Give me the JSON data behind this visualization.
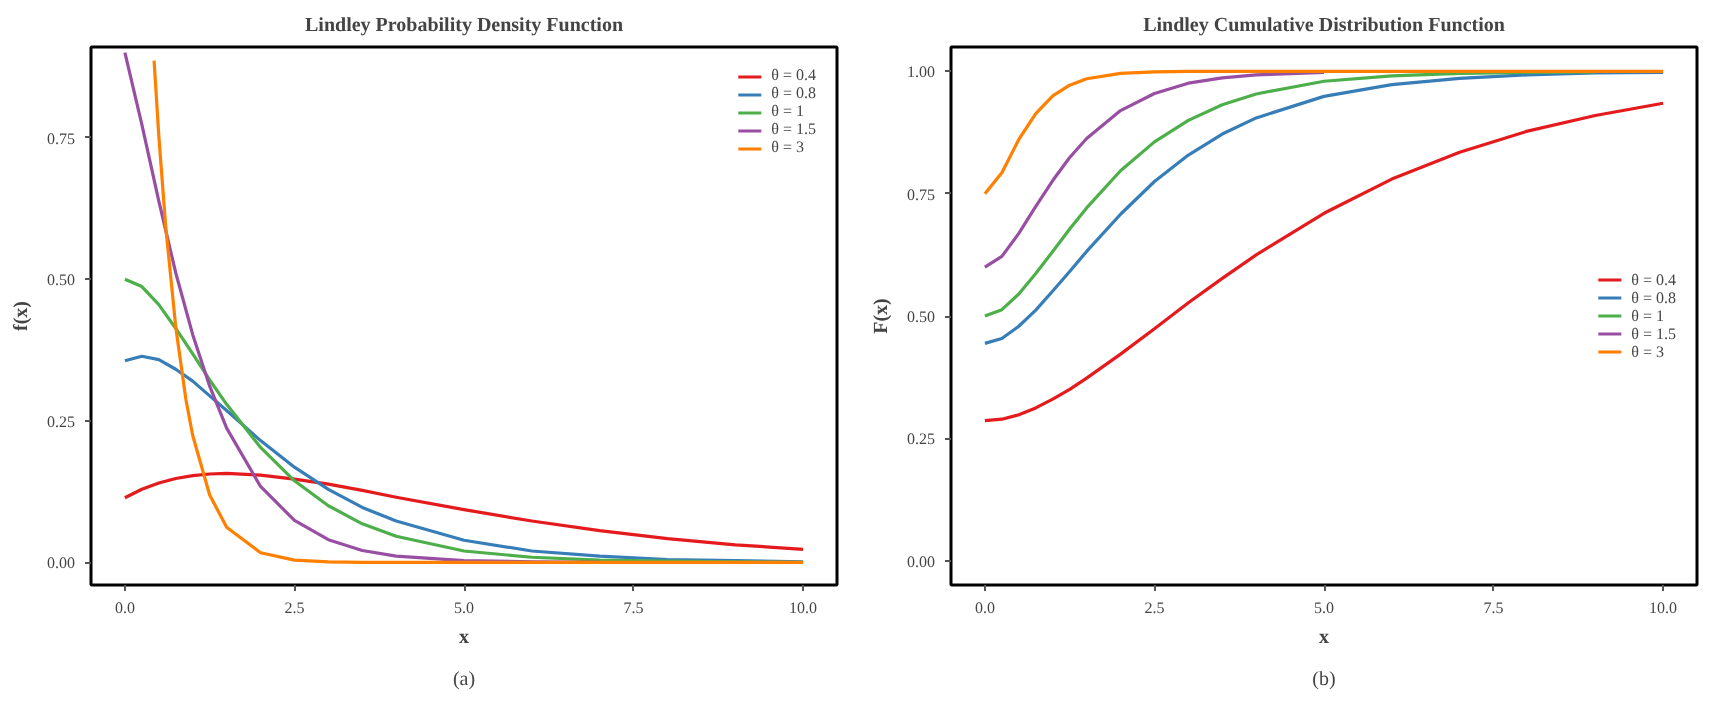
{
  "chart_data": [
    {
      "type": "line",
      "title": "Lindley Probability Density Function",
      "xlabel": "x",
      "ylabel": "f(x)",
      "annotations": [
        "(a)"
      ],
      "legend": "top right",
      "xlim": [
        -0.5,
        10.5
      ],
      "ylim": [
        -0.04,
        0.91
      ],
      "xticks": [
        {
          "value": 0,
          "label": "0.0"
        },
        {
          "value": 2.5,
          "label": "2.5"
        },
        {
          "value": 5,
          "label": "5.0"
        },
        {
          "value": 7.5,
          "label": "7.5"
        },
        {
          "value": 10,
          "label": "10.0"
        }
      ],
      "yticks": [
        {
          "value": 0,
          "label": "0.00"
        },
        {
          "value": 0.25,
          "label": "0.25"
        },
        {
          "value": 0.5,
          "label": "0.50"
        },
        {
          "value": 0.75,
          "label": "0.75"
        }
      ],
      "x": [
        0,
        0.25,
        0.5,
        0.75,
        1,
        1.25,
        1.5,
        2,
        2.5,
        3,
        3.5,
        4,
        5,
        6,
        7,
        8,
        9,
        10
      ],
      "series": [
        {
          "name": "θ = 0.4",
          "color": "#e41a1c",
          "values": [
            0.114,
            0.129,
            0.14,
            0.148,
            0.153,
            0.156,
            0.157,
            0.154,
            0.147,
            0.138,
            0.127,
            0.115,
            0.093,
            0.073,
            0.056,
            0.042,
            0.031,
            0.023
          ]
        },
        {
          "name": "θ = 0.8",
          "color": "#377eb8",
          "values": [
            0.356,
            0.364,
            0.358,
            0.341,
            0.32,
            0.294,
            0.268,
            0.215,
            0.168,
            0.129,
            0.097,
            0.073,
            0.039,
            0.02,
            0.011,
            0.005,
            0.003,
            0.001
          ]
        },
        {
          "name": "θ = 1",
          "color": "#4daf4a",
          "values": [
            0.5,
            0.487,
            0.455,
            0.413,
            0.368,
            0.322,
            0.279,
            0.203,
            0.144,
            0.1,
            0.068,
            0.046,
            0.02,
            0.009,
            0.004,
            0.002,
            0.001,
            0.0
          ]
        },
        {
          "name": "θ = 1.5",
          "color": "#984ea3",
          "values": [
            0.9,
            0.773,
            0.638,
            0.511,
            0.402,
            0.311,
            0.237,
            0.134,
            0.074,
            0.04,
            0.021,
            0.011,
            0.003,
            0.001,
            0.0,
            null,
            null,
            null
          ]
        },
        {
          "name": "θ = 3",
          "color": "#ff7f00",
          "x": [
            0.43,
            0.5,
            0.6,
            0.75,
            0.9,
            1,
            1.25,
            1.5,
            2,
            2.5,
            3,
            3.5,
            4,
            5,
            6,
            7,
            8,
            9,
            10
          ],
          "values": [
            0.886,
            0.753,
            0.595,
            0.415,
            0.287,
            0.224,
            0.119,
            0.062,
            0.017,
            0.004,
            0.001,
            0.0,
            0.0,
            0.0,
            0.0,
            0.0,
            0.0,
            0.0,
            0.0
          ]
        }
      ]
    },
    {
      "type": "line",
      "title": "Lindley Cumulative Distribution Function",
      "xlabel": "x",
      "ylabel": "F(x)",
      "annotations": [
        "(b)"
      ],
      "legend": "right",
      "xlim": [
        -0.5,
        10.5
      ],
      "ylim": [
        -0.05,
        1.05
      ],
      "xticks": [
        {
          "value": 0,
          "label": "0.0"
        },
        {
          "value": 2.5,
          "label": "2.5"
        },
        {
          "value": 5,
          "label": "5.0"
        },
        {
          "value": 7.5,
          "label": "7.5"
        },
        {
          "value": 10,
          "label": "10.0"
        }
      ],
      "yticks": [
        {
          "value": 0,
          "label": "0.00"
        },
        {
          "value": 0.25,
          "label": "0.25"
        },
        {
          "value": 0.5,
          "label": "0.50"
        },
        {
          "value": 0.75,
          "label": "0.75"
        },
        {
          "value": 1,
          "label": "1.00"
        }
      ],
      "x": [
        0,
        0.25,
        0.5,
        0.75,
        1,
        1.25,
        1.5,
        2,
        2.5,
        3,
        3.5,
        4,
        5,
        6,
        7,
        8,
        9,
        10
      ],
      "series": [
        {
          "name": "θ = 0.4",
          "color": "#e41a1c",
          "values": [
            0.286,
            0.289,
            0.298,
            0.312,
            0.33,
            0.35,
            0.373,
            0.422,
            0.474,
            0.527,
            0.577,
            0.625,
            0.71,
            0.78,
            0.835,
            0.878,
            0.91,
            0.935
          ]
        },
        {
          "name": "θ = 0.8",
          "color": "#377eb8",
          "values": [
            0.444,
            0.454,
            0.479,
            0.512,
            0.551,
            0.591,
            0.632,
            0.708,
            0.775,
            0.829,
            0.872,
            0.905,
            0.949,
            0.973,
            0.986,
            0.993,
            0.997,
            0.998
          ]
        },
        {
          "name": "θ = 1",
          "color": "#4daf4a",
          "values": [
            0.5,
            0.513,
            0.545,
            0.587,
            0.632,
            0.678,
            0.721,
            0.797,
            0.856,
            0.9,
            0.932,
            0.954,
            0.98,
            0.991,
            0.996,
            0.998,
            0.999,
            null
          ]
        },
        {
          "name": "θ = 1.5",
          "color": "#984ea3",
          "values": [
            0.6,
            0.622,
            0.669,
            0.724,
            0.777,
            0.824,
            0.863,
            0.92,
            0.955,
            0.976,
            0.987,
            0.993,
            0.998,
            null,
            null,
            null,
            null,
            null
          ]
        },
        {
          "name": "θ = 3",
          "color": "#ff7f00",
          "values": [
            0.75,
            0.793,
            0.861,
            0.914,
            0.95,
            0.972,
            0.985,
            0.996,
            0.999,
            1.0,
            1.0,
            1.0,
            1.0,
            1.0,
            1.0,
            1.0,
            1.0,
            1.0
          ]
        }
      ]
    }
  ]
}
